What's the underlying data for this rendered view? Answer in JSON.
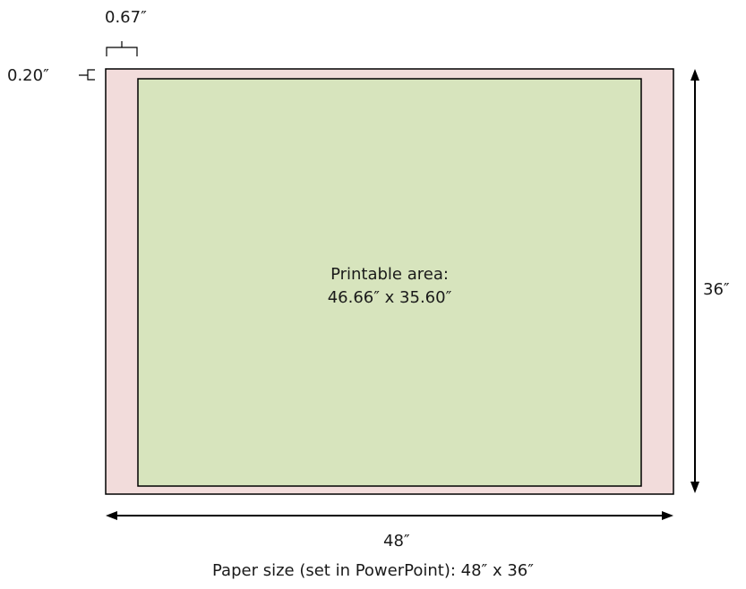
{
  "labels": {
    "side_margin": "0.67″",
    "top_margin": "0.20″",
    "height": "36″",
    "width": "48″"
  },
  "printable_area": {
    "title": "Printable area:",
    "dimensions": "46.66″ x 35.60″"
  },
  "caption": "Paper size (set in PowerPoint): 48″ x 36″",
  "colors": {
    "paper_fill": "#f2dcdb",
    "printable_fill": "#d7e4bd",
    "stroke": "#000000"
  }
}
